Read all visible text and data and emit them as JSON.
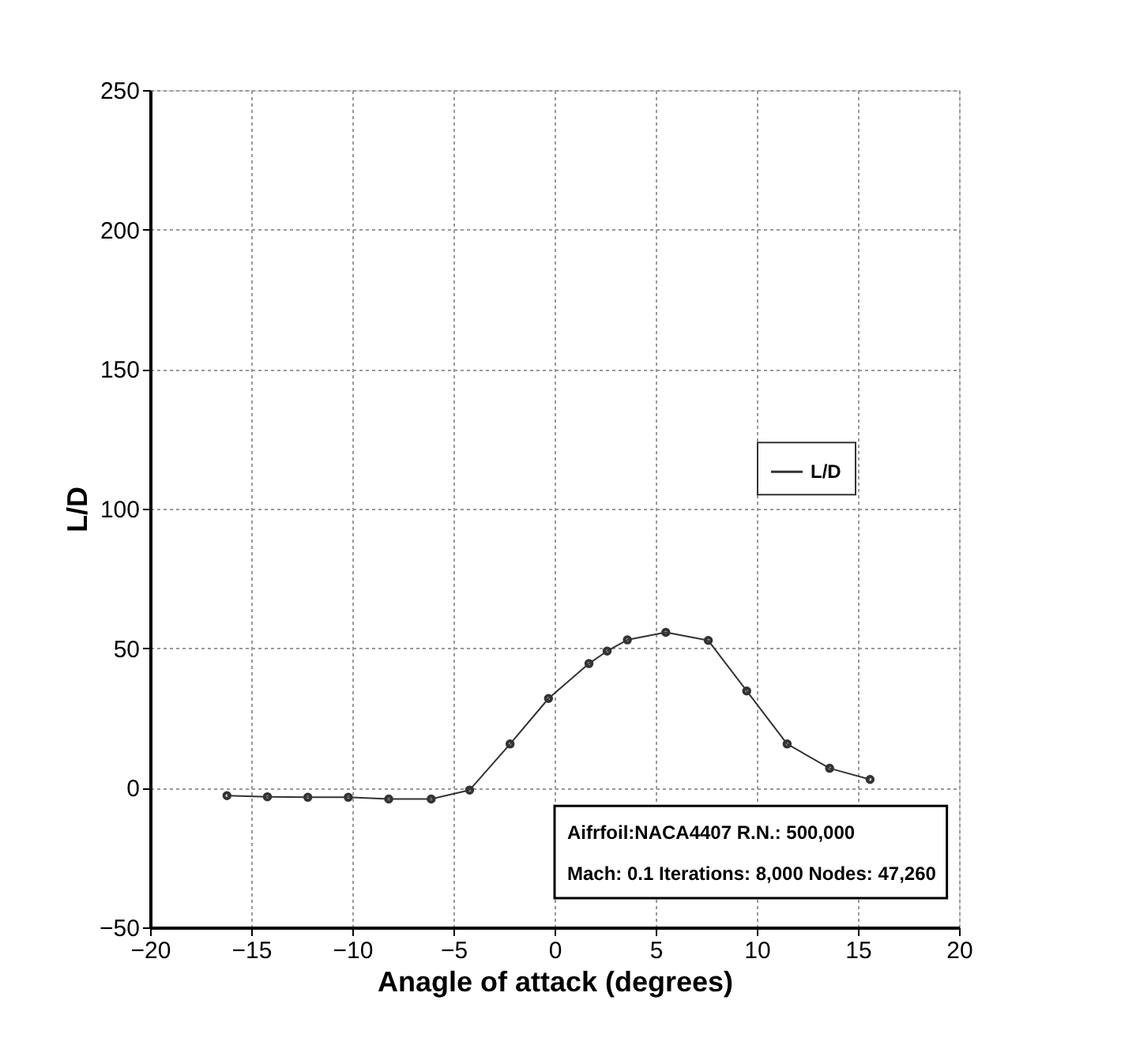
{
  "chart_data": {
    "type": "line",
    "xlabel": "Anagle of attack (degrees)",
    "ylabel": "L/D",
    "x": [
      -16.2,
      -14.2,
      -12.2,
      -10.2,
      -8.2,
      -6.1,
      -4.2,
      -2.2,
      -0.3,
      1.7,
      2.6,
      3.6,
      5.5,
      7.6,
      9.5,
      11.5,
      13.6,
      15.6
    ],
    "series": [
      {
        "name": "L/D",
        "color": "#333333",
        "values": [
          -2.8,
          -3.2,
          -3.4,
          -3.4,
          -4,
          -4,
          -0.8,
          15.7,
          32,
          44.5,
          49,
          53,
          55.7,
          52.8,
          34.7,
          15.7,
          7,
          3
        ]
      }
    ],
    "xlim": [
      -20,
      20
    ],
    "xticks": [
      -20,
      -15,
      -10,
      -5,
      0,
      5,
      10,
      15,
      20
    ],
    "ylim": [
      -50,
      250
    ],
    "yticks": [
      -50,
      0,
      50,
      100,
      150,
      200,
      250
    ],
    "grid": true,
    "legend": "right",
    "marker": "circle",
    "line_style": "solid",
    "annotations": [
      "Aifrfoil:NACA4407   R.N.: 500,000",
      "Mach: 0.1   Iterations: 8,000 Nodes: 47,260"
    ]
  }
}
